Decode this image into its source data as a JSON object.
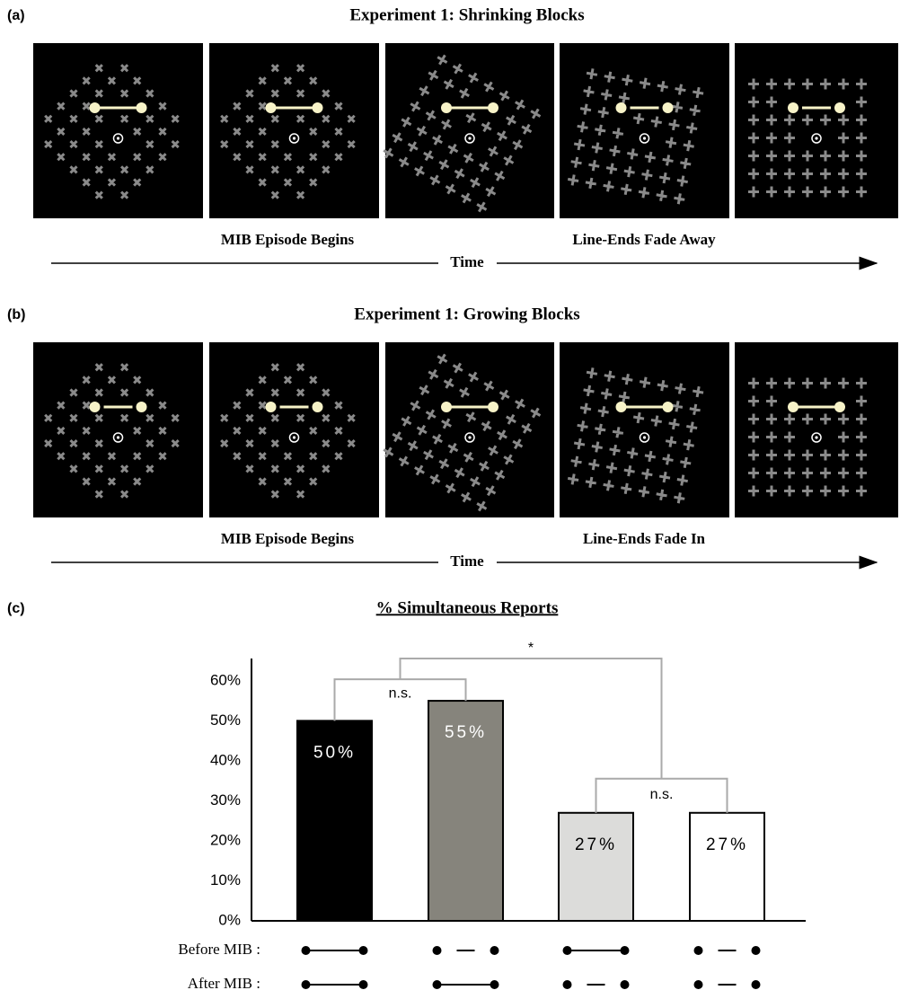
{
  "panels": [
    {
      "label": "(a)",
      "title": "Experiment 1: Shrinking Blocks",
      "captions": [
        "MIB Episode Begins",
        "Line-Ends Fade Away"
      ],
      "axis_label": "Time"
    },
    {
      "label": "(b)",
      "title": "Experiment 1: Growing Blocks",
      "captions": [
        "MIB Episode Begins",
        "Line-Ends Fade In"
      ],
      "axis_label": "Time"
    }
  ],
  "chart_data": {
    "type": "bar",
    "panel_label": "(c)",
    "title": "% Simultaneous Reports",
    "categories": [
      null,
      null,
      null,
      null
    ],
    "values": [
      50,
      55,
      27,
      27
    ],
    "value_labels": [
      "50%",
      "55%",
      "27%",
      "27%"
    ],
    "colors": [
      "#000000",
      "#86847c",
      "#dcdcda",
      "#ffffff"
    ],
    "ylim": [
      0,
      64
    ],
    "yticks": [
      {
        "value": 0,
        "label": "0%"
      },
      {
        "value": 10,
        "label": "10%"
      },
      {
        "value": 20,
        "label": "20%"
      },
      {
        "value": 30,
        "label": "30%"
      },
      {
        "value": 40,
        "label": "40%"
      },
      {
        "value": 50,
        "label": "50%"
      },
      {
        "value": 60,
        "label": "60%"
      }
    ],
    "annotations": [
      "n.s.",
      "n.s.",
      "*"
    ],
    "row_labels": [
      "Before MIB :",
      "After MIB :"
    ]
  }
}
